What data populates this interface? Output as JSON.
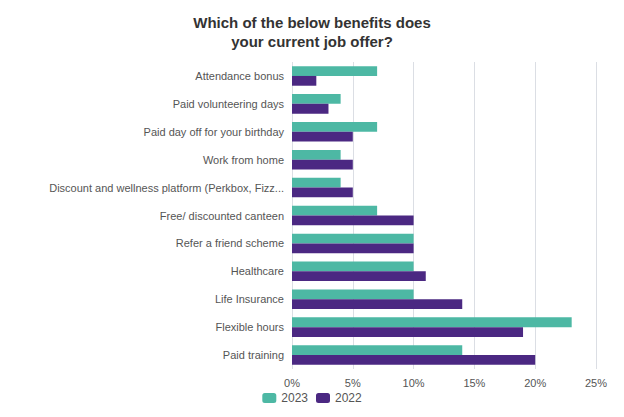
{
  "chart_data": {
    "type": "bar",
    "orientation": "horizontal",
    "title": "Which of the below benefits does\nyour current job offer?",
    "categories": [
      "Attendance bonus",
      "Paid volunteering days",
      "Paid day off for your birthday",
      "Work from home",
      "Discount and wellness platform (Perkbox, Fizz...",
      "Free/ discounted canteen",
      "Refer a friend scheme",
      "Healthcare",
      "Life Insurance",
      "Flexible hours",
      "Paid training"
    ],
    "series": [
      {
        "name": "2023",
        "color": "#4db8a4",
        "values": [
          7,
          4,
          7,
          4,
          4,
          7,
          10,
          10,
          10,
          23,
          14
        ]
      },
      {
        "name": "2022",
        "color": "#4b2882",
        "values": [
          2,
          3,
          5,
          5,
          5,
          10,
          10,
          11,
          14,
          19,
          20
        ]
      }
    ],
    "xlim": [
      0,
      25
    ],
    "xticks": [
      {
        "value": 0,
        "label": "0%"
      },
      {
        "value": 5,
        "label": "5%"
      },
      {
        "value": 10,
        "label": "10%"
      },
      {
        "value": 15,
        "label": "15%"
      },
      {
        "value": 20,
        "label": "20%"
      },
      {
        "value": 25,
        "label": "25%"
      }
    ],
    "grid": true,
    "legend": "bottom"
  }
}
